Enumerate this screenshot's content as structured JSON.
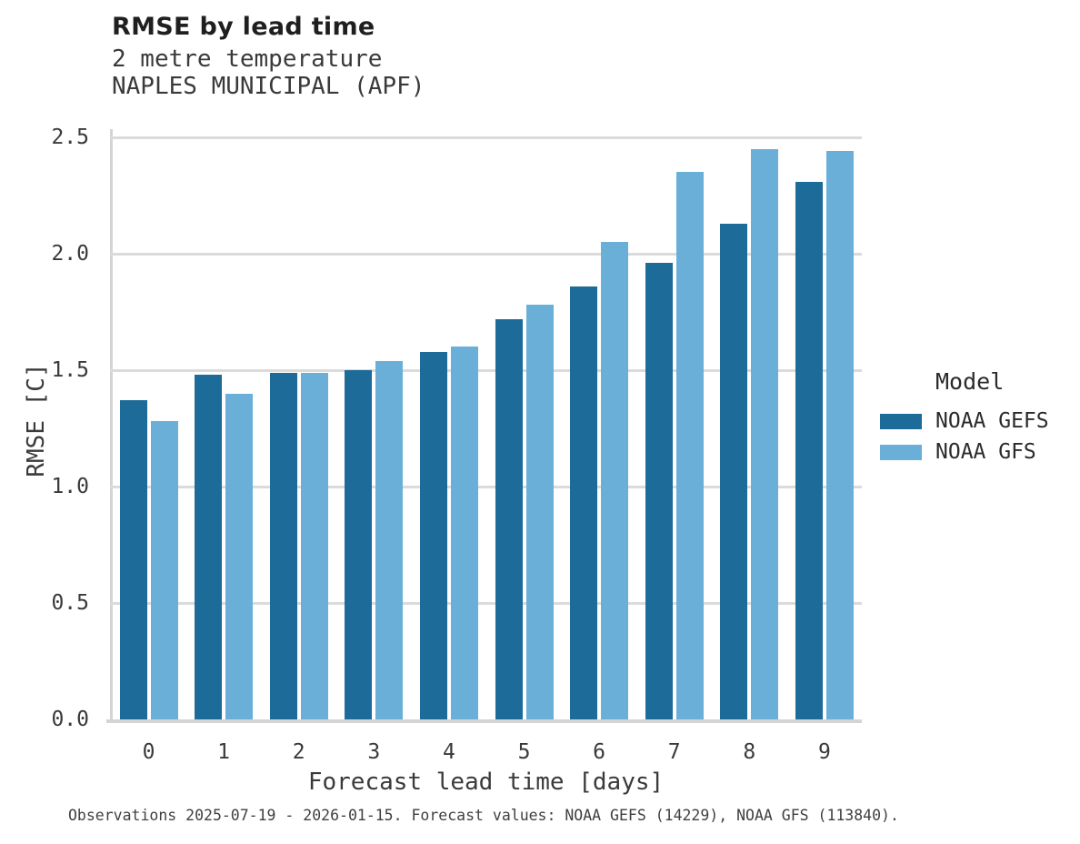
{
  "header": {
    "title": "RMSE by lead time",
    "subtitle_line1": "2 metre temperature",
    "subtitle_line2": "NAPLES MUNICIPAL (APF)"
  },
  "chart_data": {
    "type": "bar",
    "title": "RMSE by lead time",
    "subtitle": [
      "2 metre temperature",
      "NAPLES MUNICIPAL (APF)"
    ],
    "categories": [
      "0",
      "1",
      "2",
      "3",
      "4",
      "5",
      "6",
      "7",
      "8",
      "9"
    ],
    "series": [
      {
        "name": "NOAA GEFS",
        "color": "#1c6b99",
        "values": [
          1.37,
          1.48,
          1.49,
          1.5,
          1.58,
          1.72,
          1.86,
          1.96,
          2.13,
          2.31
        ]
      },
      {
        "name": "NOAA GFS",
        "color": "#69afd8",
        "values": [
          1.28,
          1.4,
          1.49,
          1.54,
          1.6,
          1.78,
          2.05,
          2.35,
          2.45,
          2.44
        ]
      }
    ],
    "xlabel": "Forecast lead time [days]",
    "ylabel": "RMSE [C]",
    "ylim": [
      0.0,
      2.5
    ],
    "yticks": [
      0.0,
      0.5,
      1.0,
      1.5,
      2.0,
      2.5
    ],
    "grid": "horizontal",
    "legend_title": "Model",
    "legend_position": "right"
  },
  "footer": {
    "caption": "Observations 2025-07-19 - 2026-01-15. Forecast values: NOAA GEFS (14229), NOAA GFS (113840)."
  }
}
